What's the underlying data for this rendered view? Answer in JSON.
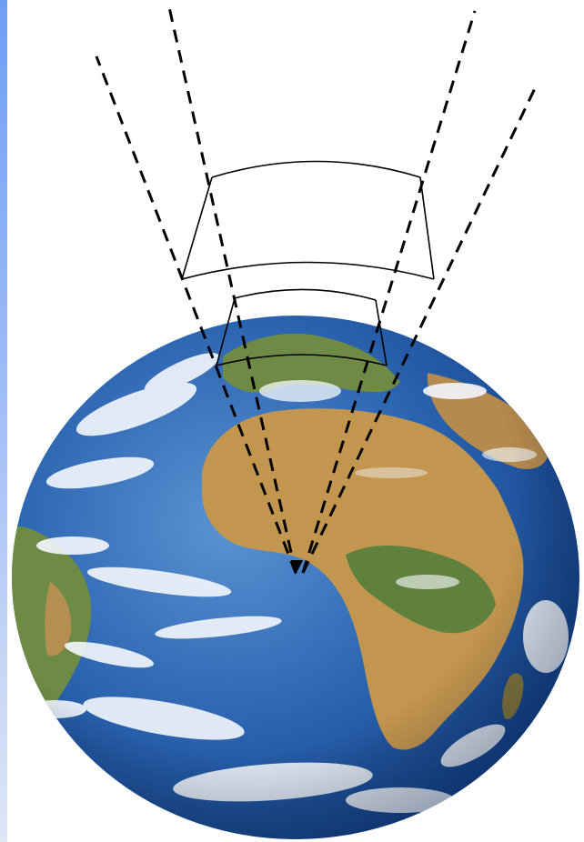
{
  "figure": {
    "subject": "earth-globe",
    "projection_cones": 2,
    "frame_shape": "curved-trapezoid",
    "frames_per_cone": 1,
    "line_style": {
      "cones": "dashed",
      "frames": "solid"
    },
    "colors": {
      "background": "#ffffff",
      "side_bar_top": "#6f9ef5",
      "side_bar_bottom": "#dfe6f6",
      "ocean_light": "#4f86c9",
      "ocean_dark": "#123f86",
      "land_desert": "#c3964f",
      "land_green": "#4f7d3a",
      "cloud": "#f4f8fc",
      "line": "#000000"
    }
  }
}
